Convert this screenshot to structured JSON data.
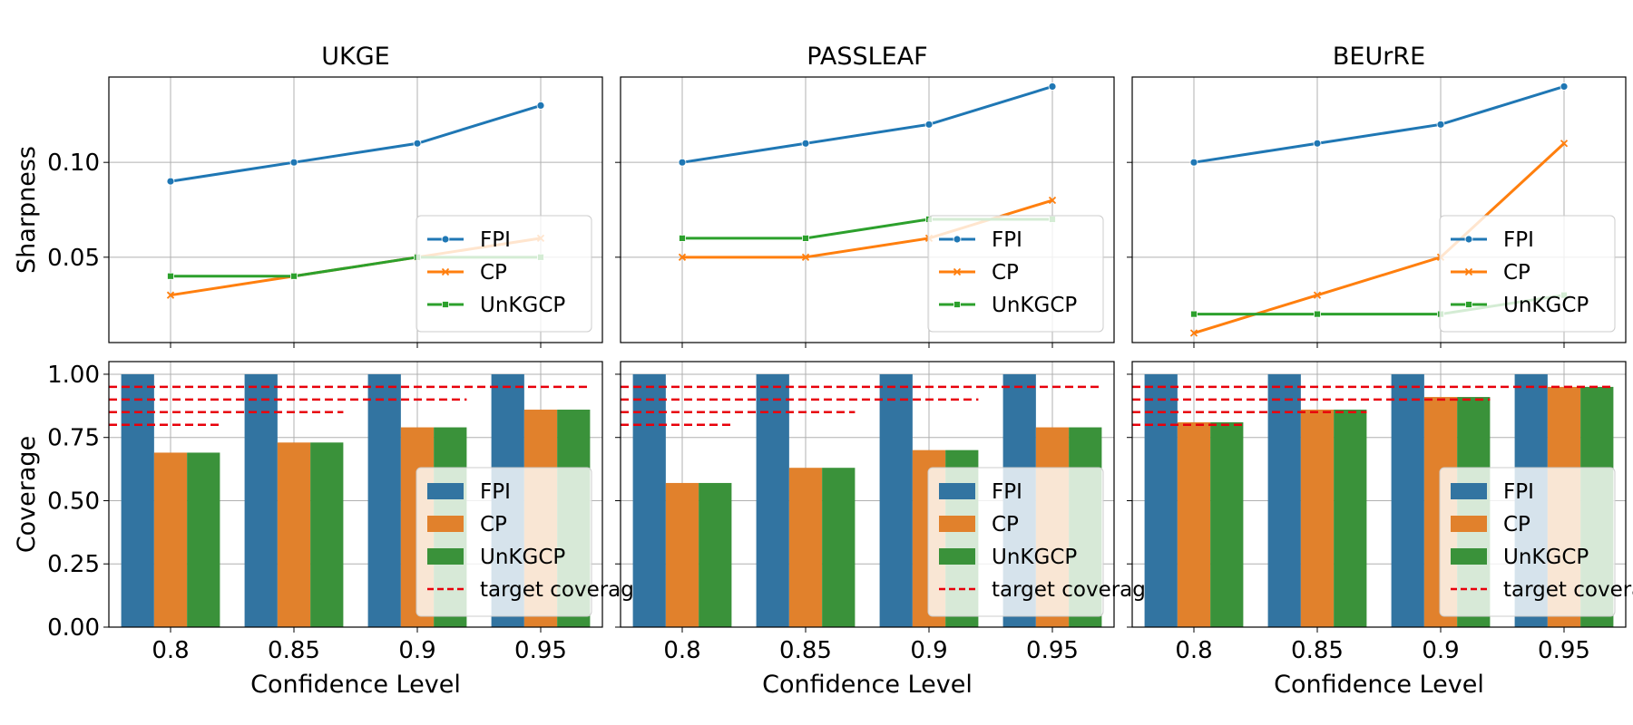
{
  "figure": {
    "panels": [
      "UKGE",
      "PASSLEAF",
      "BEUrRE"
    ],
    "xlabel": "Confidence Level",
    "colors": {
      "FPI": "#1f77b4",
      "CP": "#ff7f0e",
      "UnKGCP": "#2ca02c",
      "target": "#e8000b"
    }
  },
  "chart_data": [
    {
      "type": "line",
      "panel": "UKGE",
      "title": "UKGE",
      "xlabel": "",
      "ylabel": "Sharpness",
      "categories": [
        "0.8",
        "0.85",
        "0.9",
        "0.95"
      ],
      "ylim": [
        0.005,
        0.145
      ],
      "yticks": [
        0.05,
        0.1
      ],
      "ytick_labels": [
        "0.05",
        "0.10"
      ],
      "show_ytick_labels": true,
      "show_xtick_labels": false,
      "grid": true,
      "legend_location": "lower right",
      "series": [
        {
          "name": "FPI",
          "marker": "circle",
          "values": [
            0.09,
            0.1,
            0.11,
            0.13
          ]
        },
        {
          "name": "CP",
          "marker": "x",
          "values": [
            0.03,
            0.04,
            0.05,
            0.06
          ]
        },
        {
          "name": "UnKGCP",
          "marker": "square",
          "values": [
            0.04,
            0.04,
            0.05,
            0.05
          ]
        }
      ]
    },
    {
      "type": "line",
      "panel": "PASSLEAF",
      "title": "PASSLEAF",
      "xlabel": "",
      "ylabel": "",
      "categories": [
        "0.8",
        "0.85",
        "0.9",
        "0.95"
      ],
      "ylim": [
        0.005,
        0.145
      ],
      "yticks": [
        0.05,
        0.1
      ],
      "ytick_labels": [
        "0.05",
        "0.10"
      ],
      "show_ytick_labels": false,
      "show_xtick_labels": false,
      "grid": true,
      "legend_location": "lower right",
      "series": [
        {
          "name": "FPI",
          "marker": "circle",
          "values": [
            0.1,
            0.11,
            0.12,
            0.14
          ]
        },
        {
          "name": "CP",
          "marker": "x",
          "values": [
            0.05,
            0.05,
            0.06,
            0.08
          ]
        },
        {
          "name": "UnKGCP",
          "marker": "square",
          "values": [
            0.06,
            0.06,
            0.07,
            0.07
          ]
        }
      ]
    },
    {
      "type": "line",
      "panel": "BEUrRE",
      "title": "BEUrRE",
      "xlabel": "",
      "ylabel": "",
      "categories": [
        "0.8",
        "0.85",
        "0.9",
        "0.95"
      ],
      "ylim": [
        0.005,
        0.145
      ],
      "yticks": [
        0.05,
        0.1
      ],
      "ytick_labels": [
        "0.05",
        "0.10"
      ],
      "show_ytick_labels": false,
      "show_xtick_labels": false,
      "grid": true,
      "legend_location": "lower right",
      "series": [
        {
          "name": "FPI",
          "marker": "circle",
          "values": [
            0.1,
            0.11,
            0.12,
            0.14
          ]
        },
        {
          "name": "CP",
          "marker": "x",
          "values": [
            0.01,
            0.03,
            0.05,
            0.11
          ]
        },
        {
          "name": "UnKGCP",
          "marker": "square",
          "values": [
            0.02,
            0.02,
            0.02,
            0.03
          ]
        }
      ]
    },
    {
      "type": "bar",
      "panel": "UKGE",
      "title": "",
      "xlabel": "Confidence Level",
      "ylabel": "Coverage",
      "categories": [
        "0.8",
        "0.85",
        "0.9",
        "0.95"
      ],
      "ylim": [
        0,
        1.05
      ],
      "yticks": [
        0,
        0.25,
        0.5,
        0.75,
        1.0
      ],
      "ytick_labels": [
        "0.00",
        "0.25",
        "0.50",
        "0.75",
        "1.00"
      ],
      "show_ytick_labels": true,
      "show_xtick_labels": true,
      "grid": true,
      "legend_location": "lower right",
      "series": [
        {
          "name": "FPI",
          "values": [
            1.0,
            1.0,
            1.0,
            1.0
          ]
        },
        {
          "name": "CP",
          "values": [
            0.69,
            0.73,
            0.79,
            0.86
          ]
        },
        {
          "name": "UnKGCP",
          "values": [
            0.69,
            0.73,
            0.79,
            0.86
          ]
        }
      ],
      "target_coverage": {
        "label": "target coverage",
        "values": [
          0.8,
          0.85,
          0.9,
          0.95
        ]
      }
    },
    {
      "type": "bar",
      "panel": "PASSLEAF",
      "title": "",
      "xlabel": "Confidence Level",
      "ylabel": "",
      "categories": [
        "0.8",
        "0.85",
        "0.9",
        "0.95"
      ],
      "ylim": [
        0,
        1.05
      ],
      "yticks": [
        0,
        0.25,
        0.5,
        0.75,
        1.0
      ],
      "ytick_labels": [
        "0.00",
        "0.25",
        "0.50",
        "0.75",
        "1.00"
      ],
      "show_ytick_labels": false,
      "show_xtick_labels": true,
      "grid": true,
      "legend_location": "lower right",
      "series": [
        {
          "name": "FPI",
          "values": [
            1.0,
            1.0,
            1.0,
            1.0
          ]
        },
        {
          "name": "CP",
          "values": [
            0.57,
            0.63,
            0.7,
            0.79
          ]
        },
        {
          "name": "UnKGCP",
          "values": [
            0.57,
            0.63,
            0.7,
            0.79
          ]
        }
      ],
      "target_coverage": {
        "label": "target coverage",
        "values": [
          0.8,
          0.85,
          0.9,
          0.95
        ]
      }
    },
    {
      "type": "bar",
      "panel": "BEUrRE",
      "title": "",
      "xlabel": "Confidence Level",
      "ylabel": "",
      "categories": [
        "0.8",
        "0.85",
        "0.9",
        "0.95"
      ],
      "ylim": [
        0,
        1.05
      ],
      "yticks": [
        0,
        0.25,
        0.5,
        0.75,
        1.0
      ],
      "ytick_labels": [
        "0.00",
        "0.25",
        "0.50",
        "0.75",
        "1.00"
      ],
      "show_ytick_labels": false,
      "show_xtick_labels": true,
      "grid": true,
      "legend_location": "lower right",
      "series": [
        {
          "name": "FPI",
          "values": [
            1.0,
            1.0,
            1.0,
            1.0
          ]
        },
        {
          "name": "CP",
          "values": [
            0.81,
            0.86,
            0.91,
            0.95
          ]
        },
        {
          "name": "UnKGCP",
          "values": [
            0.81,
            0.86,
            0.91,
            0.95
          ]
        }
      ],
      "target_coverage": {
        "label": "target coverage",
        "values": [
          0.8,
          0.85,
          0.9,
          0.95
        ]
      }
    }
  ]
}
